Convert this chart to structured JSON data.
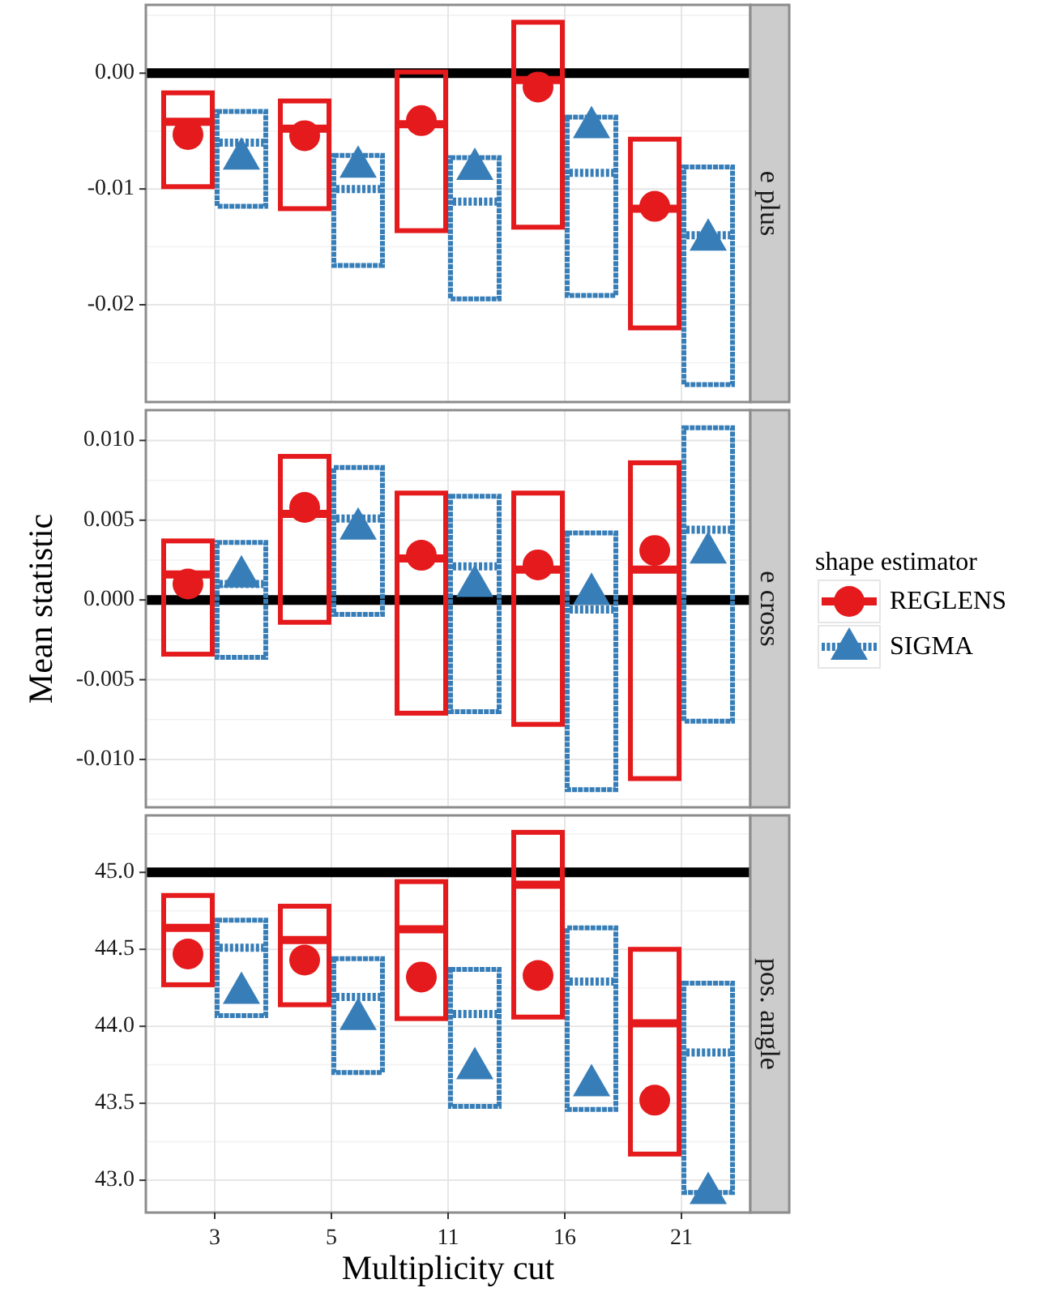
{
  "chart_data": [
    {
      "type": "box",
      "title": "e plus",
      "categories": [
        "3",
        "5",
        "11",
        "16",
        "21"
      ],
      "ylim": [
        -0.0284,
        0.0059
      ],
      "yticks": [
        {
          "value": -0.02,
          "label": "-0.02"
        },
        {
          "value": -0.01,
          "label": "-0.01"
        },
        {
          "value": 0,
          "label": "0.00"
        }
      ],
      "grid": true,
      "tick_labels": "y",
      "ref_lines": [
        {
          "axis": "y",
          "value": 0,
          "color": "#000000"
        }
      ],
      "series": [
        {
          "color": "#e41a1c",
          "marker": "circle",
          "line_style": "solid",
          "boxes": [
            {
              "low": -0.0098,
              "q1": -0.0098,
              "median": -0.0042,
              "q3": -0.0017,
              "high": -0.0017,
              "mean": -0.0053
            },
            {
              "low": -0.0117,
              "q1": -0.0117,
              "median": -0.0048,
              "q3": -0.0024,
              "high": -0.0024,
              "mean": -0.0054
            },
            {
              "low": -0.0136,
              "q1": -0.0136,
              "median": -0.0044,
              "q3": 0.0001,
              "high": 0.0001,
              "mean": -0.0041
            },
            {
              "low": -0.0133,
              "q1": -0.0133,
              "median": -0.0006,
              "q3": 0.0044,
              "high": 0.0044,
              "mean": -0.0012
            },
            {
              "low": -0.022,
              "q1": -0.022,
              "median": -0.0117,
              "q3": -0.0057,
              "high": -0.0057,
              "mean": -0.0115
            }
          ]
        },
        {
          "color": "#377eb8",
          "marker": "triangle",
          "line_style": "dotted",
          "boxes": [
            {
              "low": -0.0115,
              "q1": -0.0115,
              "median": -0.006,
              "q3": -0.0033,
              "high": -0.0033,
              "mean": -0.0072
            },
            {
              "low": -0.0166,
              "q1": -0.0166,
              "median": -0.01,
              "q3": -0.0071,
              "high": -0.0071,
              "mean": -0.0079
            },
            {
              "low": -0.0195,
              "q1": -0.0195,
              "median": -0.0111,
              "q3": -0.0073,
              "high": -0.0073,
              "mean": -0.0081
            },
            {
              "low": -0.0192,
              "q1": -0.0192,
              "median": -0.0086,
              "q3": -0.0038,
              "high": -0.0038,
              "mean": -0.0045
            },
            {
              "low": -0.0269,
              "q1": -0.0269,
              "median": -0.014,
              "q3": -0.0081,
              "high": -0.0081,
              "mean": -0.0142
            }
          ]
        }
      ]
    },
    {
      "type": "box",
      "title": "e cross",
      "ylabel": "Mean statistic",
      "legend_title": "shape estimator",
      "legend": "right",
      "categories": [
        "3",
        "5",
        "11",
        "16",
        "21"
      ],
      "ylim": [
        -0.013,
        0.0119
      ],
      "yticks": [
        {
          "value": -0.01,
          "label": "-0.010"
        },
        {
          "value": -0.005,
          "label": "-0.005"
        },
        {
          "value": 0,
          "label": "0.000"
        },
        {
          "value": 0.005,
          "label": "0.005"
        },
        {
          "value": 0.01,
          "label": "0.010"
        }
      ],
      "grid": true,
      "tick_labels": "y",
      "ref_lines": [
        {
          "axis": "y",
          "value": 0,
          "color": "#000000"
        }
      ],
      "series": [
        {
          "name": "REGLENS",
          "color": "#e41a1c",
          "marker": "circle",
          "line_style": "solid",
          "boxes": [
            {
              "low": -0.0034,
              "q1": -0.0034,
              "median": 0.0016,
              "q3": 0.0037,
              "high": 0.0037,
              "mean": 0.001
            },
            {
              "low": -0.0014,
              "q1": -0.0014,
              "median": 0.0054,
              "q3": 0.009,
              "high": 0.009,
              "mean": 0.0058
            },
            {
              "low": -0.0071,
              "q1": -0.0071,
              "median": 0.0026,
              "q3": 0.0067,
              "high": 0.0067,
              "mean": 0.0028
            },
            {
              "low": -0.0078,
              "q1": -0.0078,
              "median": 0.0019,
              "q3": 0.0067,
              "high": 0.0067,
              "mean": 0.0022
            },
            {
              "low": -0.0112,
              "q1": -0.0112,
              "median": 0.0019,
              "q3": 0.0086,
              "high": 0.0086,
              "mean": 0.0031
            }
          ]
        },
        {
          "name": "SIGMA",
          "color": "#377eb8",
          "marker": "triangle",
          "line_style": "dotted",
          "boxes": [
            {
              "low": -0.0036,
              "q1": -0.0036,
              "median": 0.001,
              "q3": 0.0036,
              "high": 0.0036,
              "mean": 0.0016
            },
            {
              "low": -0.0009,
              "q1": -0.0009,
              "median": 0.0051,
              "q3": 0.0083,
              "high": 0.0083,
              "mean": 0.0046
            },
            {
              "low": -0.007,
              "q1": -0.007,
              "median": 0.0021,
              "q3": 0.0065,
              "high": 0.0065,
              "mean": 0.001
            },
            {
              "low": -0.0119,
              "q1": -0.0119,
              "median": -0.0006,
              "q3": 0.0042,
              "high": 0.0042,
              "mean": 0.0005
            },
            {
              "low": -0.0076,
              "q1": -0.0076,
              "median": 0.0044,
              "q3": 0.0108,
              "high": 0.0108,
              "mean": 0.0031
            }
          ]
        }
      ]
    },
    {
      "type": "box",
      "title": "pos. angle",
      "xlabel": "Multiplicity cut",
      "categories": [
        "3",
        "5",
        "11",
        "16",
        "21"
      ],
      "ylim": [
        42.79,
        45.37
      ],
      "yticks": [
        {
          "value": 43,
          "label": "43.0"
        },
        {
          "value": 43.5,
          "label": "43.5"
        },
        {
          "value": 44,
          "label": "44.0"
        },
        {
          "value": 44.5,
          "label": "44.5"
        },
        {
          "value": 45,
          "label": "45.0"
        }
      ],
      "grid": true,
      "ref_lines": [
        {
          "axis": "y",
          "value": 45,
          "color": "#000000"
        }
      ],
      "series": [
        {
          "color": "#e41a1c",
          "marker": "circle",
          "line_style": "solid",
          "boxes": [
            {
              "low": 44.27,
              "q1": 44.27,
              "median": 44.64,
              "q3": 44.85,
              "high": 44.85,
              "mean": 44.47
            },
            {
              "low": 44.14,
              "q1": 44.14,
              "median": 44.56,
              "q3": 44.78,
              "high": 44.78,
              "mean": 44.43
            },
            {
              "low": 44.05,
              "q1": 44.05,
              "median": 44.63,
              "q3": 44.94,
              "high": 44.94,
              "mean": 44.32
            },
            {
              "low": 44.06,
              "q1": 44.06,
              "median": 44.92,
              "q3": 45.26,
              "high": 45.26,
              "mean": 44.33
            },
            {
              "low": 43.17,
              "q1": 43.17,
              "median": 44.02,
              "q3": 44.5,
              "high": 44.5,
              "mean": 43.52
            }
          ]
        },
        {
          "color": "#377eb8",
          "marker": "triangle",
          "line_style": "dotted",
          "boxes": [
            {
              "low": 44.07,
              "q1": 44.07,
              "median": 44.51,
              "q3": 44.69,
              "high": 44.69,
              "mean": 44.23
            },
            {
              "low": 43.7,
              "q1": 43.7,
              "median": 44.19,
              "q3": 44.44,
              "high": 44.44,
              "mean": 44.06
            },
            {
              "low": 43.48,
              "q1": 43.48,
              "median": 44.08,
              "q3": 44.37,
              "high": 44.37,
              "mean": 43.74
            },
            {
              "low": 43.46,
              "q1": 43.46,
              "median": 44.29,
              "q3": 44.64,
              "high": 44.64,
              "mean": 43.63
            },
            {
              "low": 42.92,
              "q1": 42.92,
              "median": 43.83,
              "q3": 44.28,
              "high": 44.28,
              "mean": 42.93
            }
          ]
        }
      ]
    }
  ]
}
